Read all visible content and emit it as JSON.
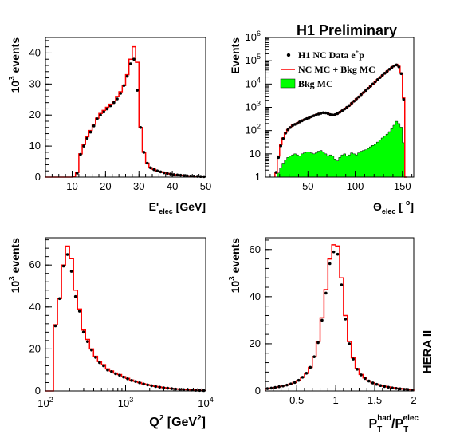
{
  "header": {
    "title": "H1 Preliminary",
    "side_label": "HERA II"
  },
  "colors": {
    "mc_line": "#ff0000",
    "bkg_fill": "#00ff00",
    "data_marker": "#000000"
  },
  "legend": {
    "data": "H1 NC Data e",
    "data_sup": "+",
    "data_tail": "p",
    "mc": "NC MC + Bkg MC",
    "bkg": "Bkg MC"
  },
  "chart_data": [
    {
      "type": "histogram",
      "id": "eelec",
      "xlabel": "E'",
      "xlabel_sub": "elec",
      "xlabel_unit": " [GeV]",
      "ylabel_pre": "10",
      "ylabel_sup": "3",
      "ylabel_post": " events",
      "xlim": [
        2,
        50
      ],
      "ylim": [
        0,
        45
      ],
      "xticks": [
        10,
        20,
        30,
        40,
        50
      ],
      "yticks": [
        0,
        10,
        20,
        30,
        40
      ],
      "edges": [
        2,
        3,
        4,
        5,
        6,
        7,
        8,
        9,
        10,
        11,
        12,
        13,
        14,
        15,
        16,
        17,
        18,
        19,
        20,
        21,
        22,
        23,
        24,
        25,
        26,
        27,
        28,
        29,
        30,
        31,
        32,
        33,
        34,
        35,
        36,
        37,
        38,
        39,
        40,
        41,
        42,
        43,
        44,
        45,
        46,
        47,
        48,
        49,
        50
      ],
      "mc": [
        0,
        0,
        0,
        0,
        0,
        0,
        0,
        0,
        0.2,
        1.5,
        7.5,
        10.5,
        13,
        15,
        17,
        19,
        20.5,
        21.5,
        22.5,
        23.5,
        24.5,
        26,
        27.5,
        29.5,
        33,
        38,
        42,
        37,
        16,
        8,
        4.5,
        3,
        2.5,
        2,
        1.7,
        1.5,
        1.2,
        1,
        0.8,
        0.7,
        0.6,
        0.5,
        0.4,
        0.35,
        0.3,
        0.25,
        0.2,
        0.15
      ],
      "data_x": [
        11.5,
        12.5,
        13.5,
        14.5,
        15.5,
        16.5,
        17.5,
        18.5,
        19.5,
        20.5,
        21.5,
        22.5,
        23.5,
        24.5,
        25.5,
        26.5,
        27.5,
        28.5,
        29.5,
        30.5,
        31.5,
        32.5,
        33.5,
        34.5,
        35.5,
        36.5,
        37.5,
        38.5,
        39.5,
        40.5,
        41.5,
        42.5,
        43.5,
        44.5,
        45.5,
        46.5,
        47.5,
        48.5,
        49.5
      ],
      "data_y": [
        1.3,
        7.3,
        10,
        12.5,
        14.5,
        16.5,
        18.8,
        20,
        21,
        22,
        23,
        24,
        25.2,
        27,
        29.5,
        32.5,
        36.5,
        38,
        28,
        16,
        8,
        4.5,
        3,
        2.4,
        2,
        1.7,
        1.4,
        1.2,
        1,
        0.8,
        0.7,
        0.6,
        0.5,
        0.4,
        0.35,
        0.3,
        0.25,
        0.2,
        0.15
      ]
    },
    {
      "type": "histogram",
      "id": "theta",
      "scale_y": "log",
      "xlabel": "Θ",
      "xlabel_sub": "elec",
      "xlabel_unit_pre": " [ ",
      "xlabel_unit_sup": "o",
      "xlabel_unit_post": "]",
      "ylabel": "Events",
      "xlim": [
        5,
        162
      ],
      "ylim": [
        1,
        1000000
      ],
      "xticks": [
        50,
        100,
        150
      ],
      "ytick_labels": [
        "1",
        "10",
        "10",
        "10",
        "10",
        "10",
        "10"
      ],
      "ytick_sups": [
        "",
        "",
        "2",
        "3",
        "4",
        "5",
        "6"
      ],
      "edges": [
        15,
        17.5,
        20,
        22.5,
        25,
        27.5,
        30,
        32.5,
        35,
        37.5,
        40,
        42.5,
        45,
        47.5,
        50,
        52.5,
        55,
        57.5,
        60,
        62.5,
        65,
        67.5,
        70,
        72.5,
        75,
        77.5,
        80,
        82.5,
        85,
        87.5,
        90,
        92.5,
        95,
        97.5,
        100,
        102.5,
        105,
        107.5,
        110,
        112.5,
        115,
        117.5,
        120,
        122.5,
        125,
        127.5,
        130,
        132.5,
        135,
        137.5,
        140,
        142.5,
        145,
        147.5,
        150,
        152.5,
        155
      ],
      "mc": [
        1.5,
        8,
        25,
        48,
        80,
        110,
        140,
        170,
        190,
        210,
        240,
        270,
        300,
        330,
        360,
        400,
        440,
        480,
        520,
        560,
        590,
        580,
        540,
        490,
        470,
        490,
        540,
        620,
        720,
        850,
        1000,
        1200,
        1500,
        1850,
        2300,
        2800,
        3500,
        4300,
        5300,
        6500,
        8000,
        10000,
        12500,
        15500,
        19000,
        23500,
        29000,
        35000,
        43000,
        52000,
        62000,
        70000,
        58000,
        30000,
        2500,
        1
      ],
      "bkg": [
        0,
        1.5,
        2.5,
        4,
        5.5,
        7,
        8,
        9,
        10,
        9,
        8,
        10,
        11,
        12,
        12,
        11,
        10,
        11,
        13,
        14,
        12,
        10,
        8,
        9,
        8,
        6,
        5,
        7,
        9,
        10,
        8,
        9,
        11,
        10,
        9,
        11,
        13,
        14,
        15,
        17,
        20,
        23,
        27,
        32,
        40,
        48,
        58,
        70,
        90,
        120,
        170,
        250,
        200,
        140,
        30,
        0
      ],
      "data_x": [
        16.25,
        18.75,
        21.25,
        23.75,
        26.25,
        28.75,
        31.25,
        33.75,
        36.25,
        38.75,
        41.25,
        43.75,
        46.25,
        48.75,
        51.25,
        53.75,
        56.25,
        58.75,
        61.25,
        63.75,
        66.25,
        68.75,
        71.25,
        73.75,
        76.25,
        78.75,
        81.25,
        83.75,
        86.25,
        88.75,
        91.25,
        93.75,
        96.25,
        98.75,
        101.25,
        103.75,
        106.25,
        108.75,
        111.25,
        113.75,
        116.25,
        118.75,
        121.25,
        123.75,
        126.25,
        128.75,
        131.25,
        133.75,
        136.25,
        138.75,
        141.25,
        143.75,
        146.25,
        148.75,
        151.25
      ],
      "data_y": [
        1.6,
        7,
        22,
        45,
        78,
        108,
        135,
        165,
        185,
        205,
        235,
        265,
        295,
        325,
        355,
        395,
        435,
        475,
        515,
        555,
        585,
        575,
        535,
        485,
        465,
        485,
        535,
        615,
        715,
        845,
        995,
        1190,
        1490,
        1840,
        2290,
        2790,
        3490,
        4290,
        5290,
        6490,
        7990,
        9990,
        12490,
        15490,
        18990,
        23490,
        28990,
        34990,
        42990,
        51990,
        60000,
        66000,
        55000,
        28000,
        2200
      ]
    },
    {
      "type": "histogram",
      "id": "q2",
      "scale_x": "log",
      "xlabel": "Q",
      "xlabel_sup": "2",
      "xlabel_unit_pre": " [GeV",
      "xlabel_unit_sup": "2",
      "xlabel_unit_post": "]",
      "ylabel_pre": "10",
      "ylabel_sup": "3",
      "ylabel_post": " events",
      "xlim": [
        100,
        10000
      ],
      "ylim": [
        0,
        73
      ],
      "xtick_labels": [
        "10",
        "10",
        "10"
      ],
      "xtick_sups": [
        "2",
        "3",
        "4"
      ],
      "yticks": [
        0,
        20,
        40,
        60
      ],
      "edges": [
        100,
        125.9,
        141.3,
        158.5,
        177.8,
        199.5,
        223.9,
        251.2,
        281.8,
        316.2,
        354.8,
        398.1,
        446.7,
        501.2,
        562.3,
        631,
        707.9,
        794.3,
        891.3,
        1000,
        1122,
        1259,
        1413,
        1585,
        1778,
        1995,
        2239,
        2512,
        2818,
        3162,
        3548,
        3981,
        4467,
        5012,
        5623,
        6310,
        7079,
        7943,
        8913,
        10000
      ],
      "mc": [
        0,
        31.5,
        44,
        60,
        69,
        63,
        48,
        39,
        29,
        24.5,
        20,
        16.5,
        14,
        12.5,
        10.5,
        9.5,
        8.5,
        7.8,
        6.8,
        6,
        5.2,
        4.6,
        4,
        3.4,
        3,
        2.6,
        2.2,
        1.9,
        1.6,
        1.4,
        1.2,
        1,
        0.8,
        0.7,
        0.6,
        0.5,
        0.4,
        0.3,
        0.2
      ],
      "data_x": [
        133,
        150,
        168,
        188,
        211,
        237,
        266,
        298,
        335,
        376,
        422,
        473,
        531,
        596,
        668,
        750,
        841,
        944,
        1059,
        1189,
        1334,
        1496,
        1679,
        1884,
        2114,
        2371,
        2661,
        2985,
        3350,
        3758,
        4217,
        4732,
        5309,
        5957,
        6683,
        7499,
        8414,
        9441
      ],
      "data_y": [
        31,
        44,
        59.5,
        65,
        57,
        45,
        38,
        28,
        23.5,
        19.5,
        16,
        13.5,
        12,
        10,
        9.2,
        8.2,
        7.5,
        6.6,
        5.8,
        5,
        4.5,
        3.9,
        3.3,
        2.9,
        2.5,
        2.1,
        1.8,
        1.5,
        1.3,
        1.1,
        0.9,
        0.75,
        0.65,
        0.55,
        0.45,
        0.35,
        0.28,
        0.2
      ]
    },
    {
      "type": "histogram",
      "id": "ptratio",
      "xlabel": "P",
      "xlabel_sub": "T",
      "xlabel_sup": "had",
      "xlabel_mid": "/P",
      "xlabel_sub2": "T",
      "xlabel_sup2": "elec",
      "ylabel_pre": "10",
      "ylabel_sup": "3",
      "ylabel_post": " events",
      "xlim": [
        0.1,
        2
      ],
      "ylim": [
        0,
        65
      ],
      "xticks": [
        0.5,
        1,
        1.5,
        2
      ],
      "yticks": [
        0,
        20,
        40,
        60
      ],
      "edges": [
        0.1,
        0.15,
        0.2,
        0.25,
        0.3,
        0.35,
        0.4,
        0.45,
        0.5,
        0.55,
        0.6,
        0.65,
        0.7,
        0.75,
        0.8,
        0.85,
        0.9,
        0.95,
        1,
        1.05,
        1.1,
        1.15,
        1.2,
        1.25,
        1.3,
        1.35,
        1.4,
        1.45,
        1.5,
        1.55,
        1.6,
        1.65,
        1.7,
        1.75,
        1.8,
        1.85,
        1.9,
        1.95,
        2
      ],
      "mc": [
        1,
        1.2,
        1.5,
        1.8,
        2.1,
        2.5,
        3,
        3.6,
        4.5,
        5.8,
        7.5,
        10,
        14.5,
        21,
        31,
        43,
        56,
        62,
        61.5,
        48,
        32,
        21,
        14,
        9.5,
        7,
        5.5,
        4.3,
        3.5,
        2.9,
        2.4,
        2,
        1.7,
        1.4,
        1.2,
        1,
        0.8,
        0.6,
        0.5
      ],
      "data_x": [
        0.125,
        0.175,
        0.225,
        0.275,
        0.325,
        0.375,
        0.425,
        0.475,
        0.525,
        0.575,
        0.625,
        0.675,
        0.725,
        0.775,
        0.825,
        0.875,
        0.925,
        0.975,
        1.025,
        1.075,
        1.125,
        1.175,
        1.225,
        1.275,
        1.325,
        1.375,
        1.425,
        1.475,
        1.525,
        1.575,
        1.625,
        1.675,
        1.725,
        1.775,
        1.825,
        1.875,
        1.925,
        1.975
      ],
      "data_y": [
        1,
        1.2,
        1.5,
        1.8,
        2.1,
        2.5,
        3,
        3.6,
        4.5,
        5.8,
        7.5,
        10,
        14.5,
        20.5,
        30,
        41.5,
        54,
        59,
        58,
        45,
        30.5,
        20,
        13.5,
        9.2,
        6.8,
        5.3,
        4.2,
        3.4,
        2.8,
        2.3,
        1.9,
        1.6,
        1.3,
        1.1,
        0.9,
        0.7,
        0.6,
        0.4
      ]
    }
  ]
}
